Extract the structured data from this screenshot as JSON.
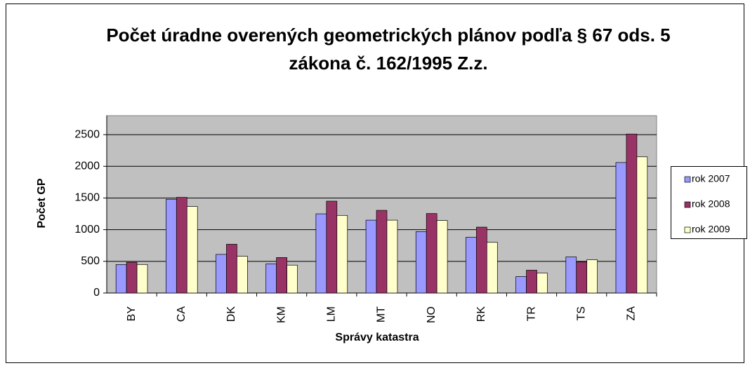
{
  "chart_data": {
    "type": "bar",
    "title": "Počet úradne overených geometrických plánov podľa § 67 ods. 5 zákona č. 162/1995 Z.z.",
    "x_label": "Správy katastra",
    "y_label": "Počet GP",
    "categories": [
      "BY",
      "CA",
      "DK",
      "KM",
      "LM",
      "MT",
      "NO",
      "RK",
      "TR",
      "TS",
      "ZA"
    ],
    "series": [
      {
        "name": "rok 2007",
        "color": "#9999ff",
        "values": [
          450,
          1480,
          610,
          460,
          1250,
          1150,
          970,
          880,
          260,
          570,
          2060
        ]
      },
      {
        "name": "rok 2008",
        "color": "#993366",
        "values": [
          485,
          1510,
          770,
          560,
          1450,
          1305,
          1255,
          1040,
          360,
          490,
          2510
        ]
      },
      {
        "name": "rok 2009",
        "color": "#ffffcc",
        "values": [
          450,
          1365,
          580,
          440,
          1225,
          1150,
          1145,
          800,
          315,
          525,
          2150
        ]
      }
    ],
    "ylim": [
      0,
      2800
    ],
    "yticks": [
      0,
      500,
      1000,
      1500,
      2000,
      2500
    ],
    "grid": true,
    "legend": "right"
  }
}
